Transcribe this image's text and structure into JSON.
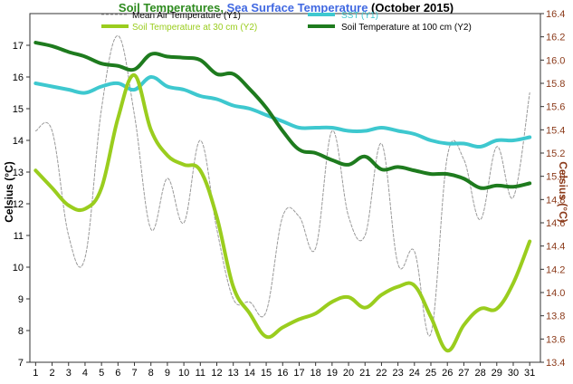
{
  "chart_data": {
    "type": "line",
    "title": {
      "part1": "Soil Temperatures, ",
      "part2": "Sea Surface Temperature",
      "part3": " (October 2015)",
      "color1": "#2E8B1F",
      "color2": "#4169E1",
      "color3": "#000000"
    },
    "ylabel": "Celsius (°C)",
    "y2label": "Celsius (°C)",
    "x": [
      1,
      2,
      3,
      4,
      5,
      6,
      7,
      8,
      9,
      10,
      11,
      12,
      13,
      14,
      15,
      16,
      17,
      18,
      19,
      20,
      21,
      22,
      23,
      24,
      25,
      26,
      27,
      28,
      29,
      30,
      31
    ],
    "xlim": [
      0.65,
      31.65
    ],
    "ylim": [
      7,
      18
    ],
    "y2lim": [
      13.4,
      16.4
    ],
    "yticks": [
      7,
      8,
      9,
      10,
      11,
      12,
      13,
      14,
      15,
      16,
      17
    ],
    "y2ticks": [
      "13.4",
      "13.6",
      "13.8",
      "14.0",
      "14.2",
      "14.4",
      "14.6",
      "14.8",
      "15.0",
      "15.2",
      "15.4",
      "15.6",
      "15.8",
      "16.0",
      "16.2",
      "16.4"
    ],
    "xticks": [
      "1",
      "2",
      "3",
      "4",
      "5",
      "6",
      "7",
      "8",
      "9",
      "10",
      "11",
      "12",
      "13",
      "14",
      "15",
      "16",
      "17",
      "18",
      "19",
      "20",
      "21",
      "22",
      "23",
      "24",
      "25",
      "26",
      "27",
      "28",
      "29",
      "30",
      "31"
    ],
    "series": [
      {
        "name": "Mean Air Temperature (Y1)",
        "axis": "y1",
        "color": "#999999",
        "dashed": true,
        "width": 1,
        "values": [
          14.3,
          14.3,
          11.0,
          10.3,
          15.0,
          17.3,
          14.8,
          11.2,
          12.8,
          11.4,
          14.0,
          11.2,
          9.0,
          8.9,
          8.6,
          11.6,
          11.6,
          10.6,
          14.3,
          11.6,
          11.0,
          13.9,
          10.1,
          10.5,
          7.9,
          13.5,
          13.4,
          11.5,
          13.8,
          12.2,
          15.5
        ]
      },
      {
        "name": "SST (Y1)",
        "axis": "y1",
        "color": "#3EC8CF",
        "dashed": false,
        "width": 4,
        "values": [
          15.8,
          15.7,
          15.6,
          15.5,
          15.7,
          15.8,
          15.6,
          16.0,
          15.7,
          15.6,
          15.4,
          15.3,
          15.1,
          15.0,
          14.8,
          14.6,
          14.4,
          14.4,
          14.4,
          14.3,
          14.3,
          14.4,
          14.3,
          14.2,
          14.0,
          13.9,
          13.9,
          13.8,
          14.0,
          14.0,
          14.1
        ]
      },
      {
        "name": "Soil Temperature at 30 cm (Y2)",
        "axis": "y2",
        "color": "#9ACD1E",
        "dashed": false,
        "width": 4,
        "values": [
          15.05,
          14.9,
          14.75,
          14.72,
          14.9,
          15.5,
          15.87,
          15.4,
          15.18,
          15.1,
          15.05,
          14.65,
          14.05,
          13.82,
          13.62,
          13.7,
          13.77,
          13.82,
          13.92,
          13.96,
          13.87,
          13.98,
          14.05,
          14.06,
          13.79,
          13.5,
          13.72,
          13.86,
          13.86,
          14.08,
          14.44
        ]
      },
      {
        "name": "Soil Temperature at 100 cm (Y2)",
        "axis": "y2",
        "color": "#1E7B1E",
        "dashed": false,
        "width": 4,
        "values": [
          16.15,
          16.12,
          16.07,
          16.03,
          15.97,
          15.95,
          15.92,
          16.05,
          16.03,
          16.02,
          16.0,
          15.88,
          15.88,
          15.75,
          15.59,
          15.39,
          15.23,
          15.2,
          15.14,
          15.1,
          15.17,
          15.06,
          15.08,
          15.05,
          15.02,
          15.02,
          14.98,
          14.9,
          14.92,
          14.91,
          14.94
        ]
      }
    ],
    "legend": "top"
  }
}
